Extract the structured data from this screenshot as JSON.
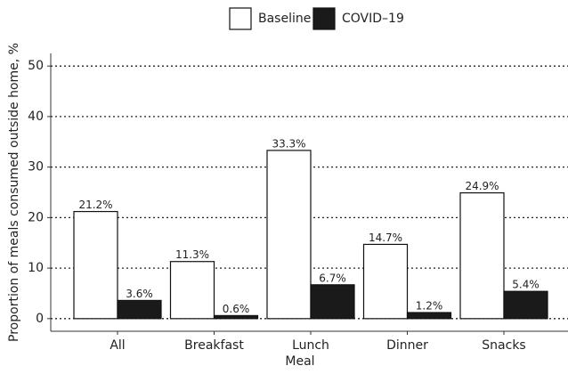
{
  "chart_data": {
    "type": "bar",
    "x_label": "Meal",
    "y_label": "Proportion of meals consumed outside home, %",
    "categories": [
      "All",
      "Breakfast",
      "Lunch",
      "Dinner",
      "Snacks"
    ],
    "series": [
      {
        "name": "Baseline",
        "color": "#ffffff",
        "values": [
          21.2,
          11.3,
          33.3,
          14.7,
          24.9
        ],
        "value_labels": [
          "21.2%",
          "11.3%",
          "33.3%",
          "14.7%",
          "24.9%"
        ]
      },
      {
        "name": "COVID–19",
        "color": "#1a1a1a",
        "values": [
          3.6,
          0.6,
          6.7,
          1.2,
          5.4
        ],
        "value_labels": [
          "3.6%",
          "0.6%",
          "6.7%",
          "1.2%",
          "5.4%"
        ]
      }
    ],
    "ylim": [
      -2.5,
      52.5
    ],
    "yticks": [
      0,
      10,
      20,
      30,
      40,
      50
    ],
    "grid": true,
    "legend": "top"
  }
}
